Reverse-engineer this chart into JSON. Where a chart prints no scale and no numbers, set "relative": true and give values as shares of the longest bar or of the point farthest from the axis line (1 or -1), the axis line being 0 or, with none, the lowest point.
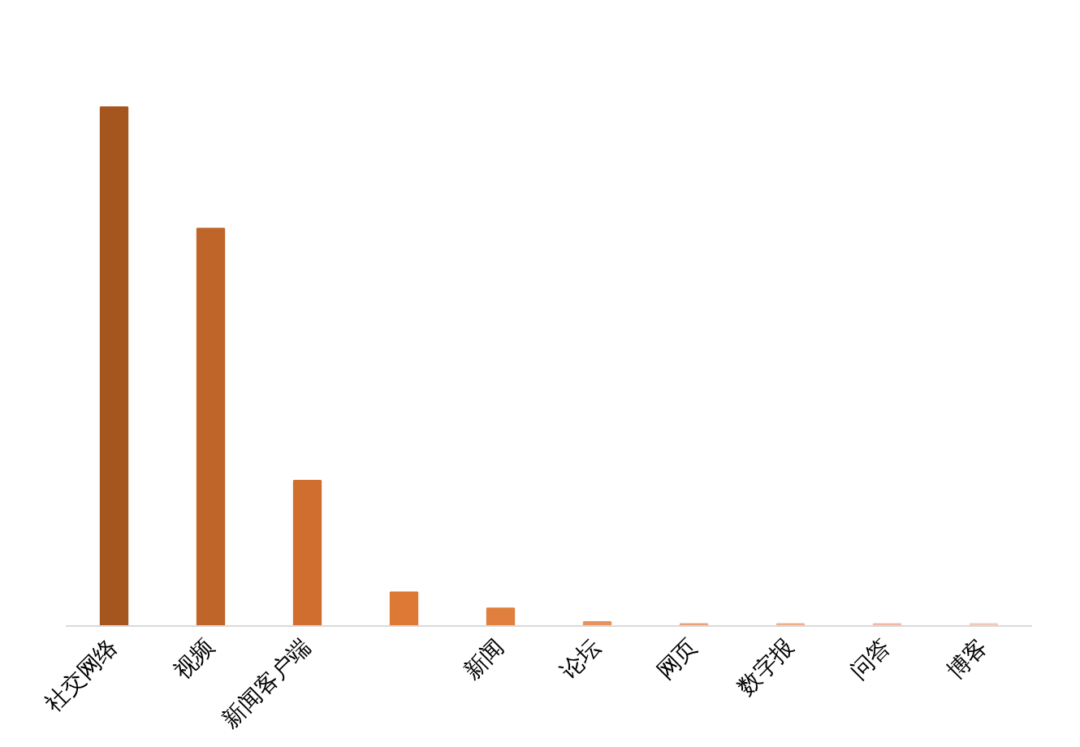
{
  "chart_data": {
    "type": "bar",
    "relative": true,
    "categories": [
      "社交网络",
      "视频",
      "新闻客户端",
      null,
      "新闻",
      "论坛",
      "网页",
      "数字报",
      "问答",
      "博客"
    ],
    "values": [
      1,
      0.766,
      0.28,
      0.065,
      0.034,
      0.008,
      0.004,
      0.004,
      0.004,
      0.004
    ],
    "colors": [
      "#a5561f",
      "#c0652a",
      "#d06e30",
      "#dd7935",
      "#e07f3e",
      "#e8915a",
      "#eda27a",
      "#f0b090",
      "#f2bba4",
      "#f5c9b9"
    ],
    "grid": false
  }
}
